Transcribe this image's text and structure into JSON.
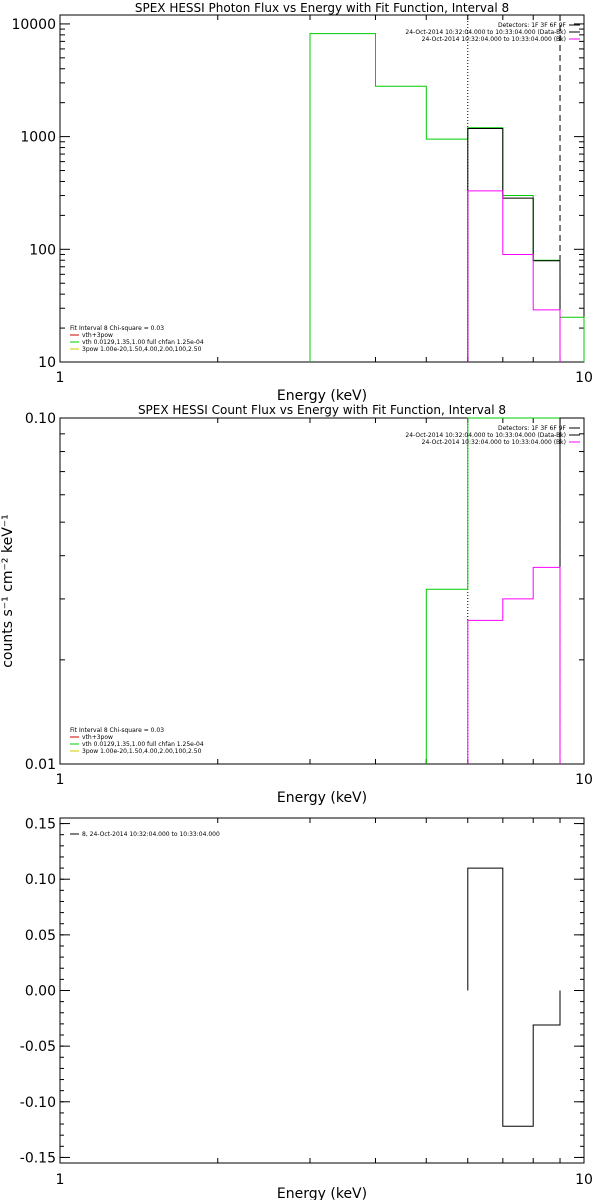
{
  "colors": {
    "fit_total": "#cc0000",
    "vth": "#00cc00",
    "bpow": "#cccc00",
    "data": "#000000",
    "bkg": "#ff00ff",
    "residual": "#000000"
  },
  "chart_data": [
    {
      "type": "line",
      "title": "SPEX HESSI Photon Flux vs Energy with Fit Function, Interval 8",
      "xlabel": "Energy (keV)",
      "ylabel": "",
      "xscale": "log",
      "yscale": "log",
      "xlim": [
        1,
        10
      ],
      "ylim": [
        10,
        12000
      ],
      "xticks": [
        {
          "v": 1,
          "label": "1"
        },
        {
          "v": 10,
          "label": "10"
        }
      ],
      "yticks": [
        {
          "v": 10,
          "label": "10"
        },
        {
          "v": 100,
          "label": "100"
        },
        {
          "v": 1000,
          "label": "1000"
        },
        {
          "v": 10000,
          "label": "10000"
        }
      ],
      "legend_right": [
        {
          "text": "Detectors: 1F 3F 6F 9F",
          "color": "#000000"
        },
        {
          "text": "24-Oct-2014 10:32:04.000 to 10:33:04.000 (Data-Bk)",
          "color": "#000000"
        },
        {
          "text": "24-Oct-2014 10:32:04.000 to 10:33:04.000 (Bk)",
          "color": "#ff00ff"
        }
      ],
      "legend_left": [
        {
          "text": "Fit Interval 8   Chi-square = 0.03",
          "color": ""
        },
        {
          "text": "vth+3pow",
          "color": "#cc0000"
        },
        {
          "text": "vth 0.0129,1.35,1.00  full chfan 1.25e-04",
          "color": "#00cc00"
        },
        {
          "text": "3pow 1.00e-20,1.50,4.00,2.00,100,2.50",
          "color": "#cccc00"
        }
      ],
      "vlines": [
        {
          "x": 6.0,
          "style": "dotted"
        },
        {
          "x": 9.0,
          "style": "dashed"
        }
      ],
      "series": [
        {
          "role": "vth",
          "color": "#00cc00",
          "edges": [
            3.0,
            4.0,
            5.0,
            6.0,
            7.0,
            8.0,
            9.0,
            10.0
          ],
          "values": [
            8200,
            2800,
            950,
            1200,
            300,
            80,
            25
          ]
        },
        {
          "role": "data",
          "color": "#000000",
          "edges": [
            6.0,
            7.0,
            8.0,
            9.0
          ],
          "values": [
            1180,
            285,
            79
          ]
        },
        {
          "role": "bkg",
          "color": "#ff00ff",
          "edges": [
            6.0,
            7.0,
            8.0,
            9.0
          ],
          "values": [
            330,
            90,
            29
          ]
        }
      ]
    },
    {
      "type": "line",
      "title": "SPEX HESSI Count Flux vs Energy with Fit Function, Interval 8",
      "xlabel": "Energy (keV)",
      "ylabel": "counts s⁻¹ cm⁻² keV⁻¹",
      "xscale": "log",
      "yscale": "log",
      "xlim": [
        1,
        10
      ],
      "ylim": [
        0.01,
        0.1
      ],
      "xticks": [
        {
          "v": 1,
          "label": "1"
        },
        {
          "v": 10,
          "label": "10"
        }
      ],
      "yticks": [
        {
          "v": 0.01,
          "label": "0.01"
        },
        {
          "v": 0.1,
          "label": "0.10"
        }
      ],
      "legend_right": [
        {
          "text": "Detectors: 1F 3F 6F 9F",
          "color": "#000000"
        },
        {
          "text": "24-Oct-2014 10:32:04.000 to 10:33:04.000 (Data-Bk)",
          "color": "#000000"
        },
        {
          "text": "24-Oct-2014 10:32:04.000 to 10:33:04.000 (Bk)",
          "color": "#ff00ff"
        }
      ],
      "legend_left": [
        {
          "text": "Fit Interval 8   Chi-square = 0.03",
          "color": ""
        },
        {
          "text": "vth+3pow",
          "color": "#cc0000"
        },
        {
          "text": "vth 0.0129,1.35,1.00  full chfan 1.25e-04",
          "color": "#00cc00"
        },
        {
          "text": "3pow 1.00e-20,1.50,4.00,2.00,100,2.50",
          "color": "#cccc00"
        }
      ],
      "vlines": [
        {
          "x": 6.0,
          "style": "dotted"
        },
        {
          "x": 9.0,
          "style": "dashed"
        }
      ],
      "series": [
        {
          "role": "vth",
          "color": "#00cc00",
          "edges": [
            5.0,
            6.0,
            7.0,
            8.0,
            9.0,
            10.0
          ],
          "values": [
            0.032,
            0.11,
            0.11,
            0.11,
            0.11
          ]
        },
        {
          "role": "data",
          "color": "#000000",
          "edges": [
            9.0,
            10.0
          ],
          "values": [
            0.11
          ]
        },
        {
          "role": "bkg",
          "color": "#ff00ff",
          "edges": [
            6.0,
            7.0,
            8.0,
            9.0
          ],
          "values": [
            0.026,
            0.03,
            0.037
          ]
        }
      ]
    },
    {
      "type": "line",
      "title": "",
      "xlabel": "Energy (keV)",
      "ylabel": "",
      "xscale": "log",
      "yscale": "linear",
      "xlim": [
        1,
        10
      ],
      "ylim": [
        -0.155,
        0.155
      ],
      "xticks": [
        {
          "v": 1,
          "label": "1"
        },
        {
          "v": 10,
          "label": "10"
        }
      ],
      "yticks": [
        {
          "v": -0.15,
          "label": "-0.15"
        },
        {
          "v": -0.1,
          "label": "-0.10"
        },
        {
          "v": -0.05,
          "label": "-0.05"
        },
        {
          "v": 0.0,
          "label": "0.00"
        },
        {
          "v": 0.05,
          "label": "0.05"
        },
        {
          "v": 0.1,
          "label": "0.10"
        },
        {
          "v": 0.15,
          "label": "0.15"
        }
      ],
      "legend_right": [],
      "legend_left": [
        {
          "text": "8, 24-Oct-2014 10:32:04.000 to 10:33:04.000",
          "color": "#000000"
        }
      ],
      "vlines": [],
      "series": [
        {
          "role": "residual",
          "color": "#000000",
          "edges": [
            6.0,
            7.0,
            8.0,
            9.0
          ],
          "values": [
            0.11,
            -0.122,
            -0.031
          ]
        }
      ]
    }
  ]
}
